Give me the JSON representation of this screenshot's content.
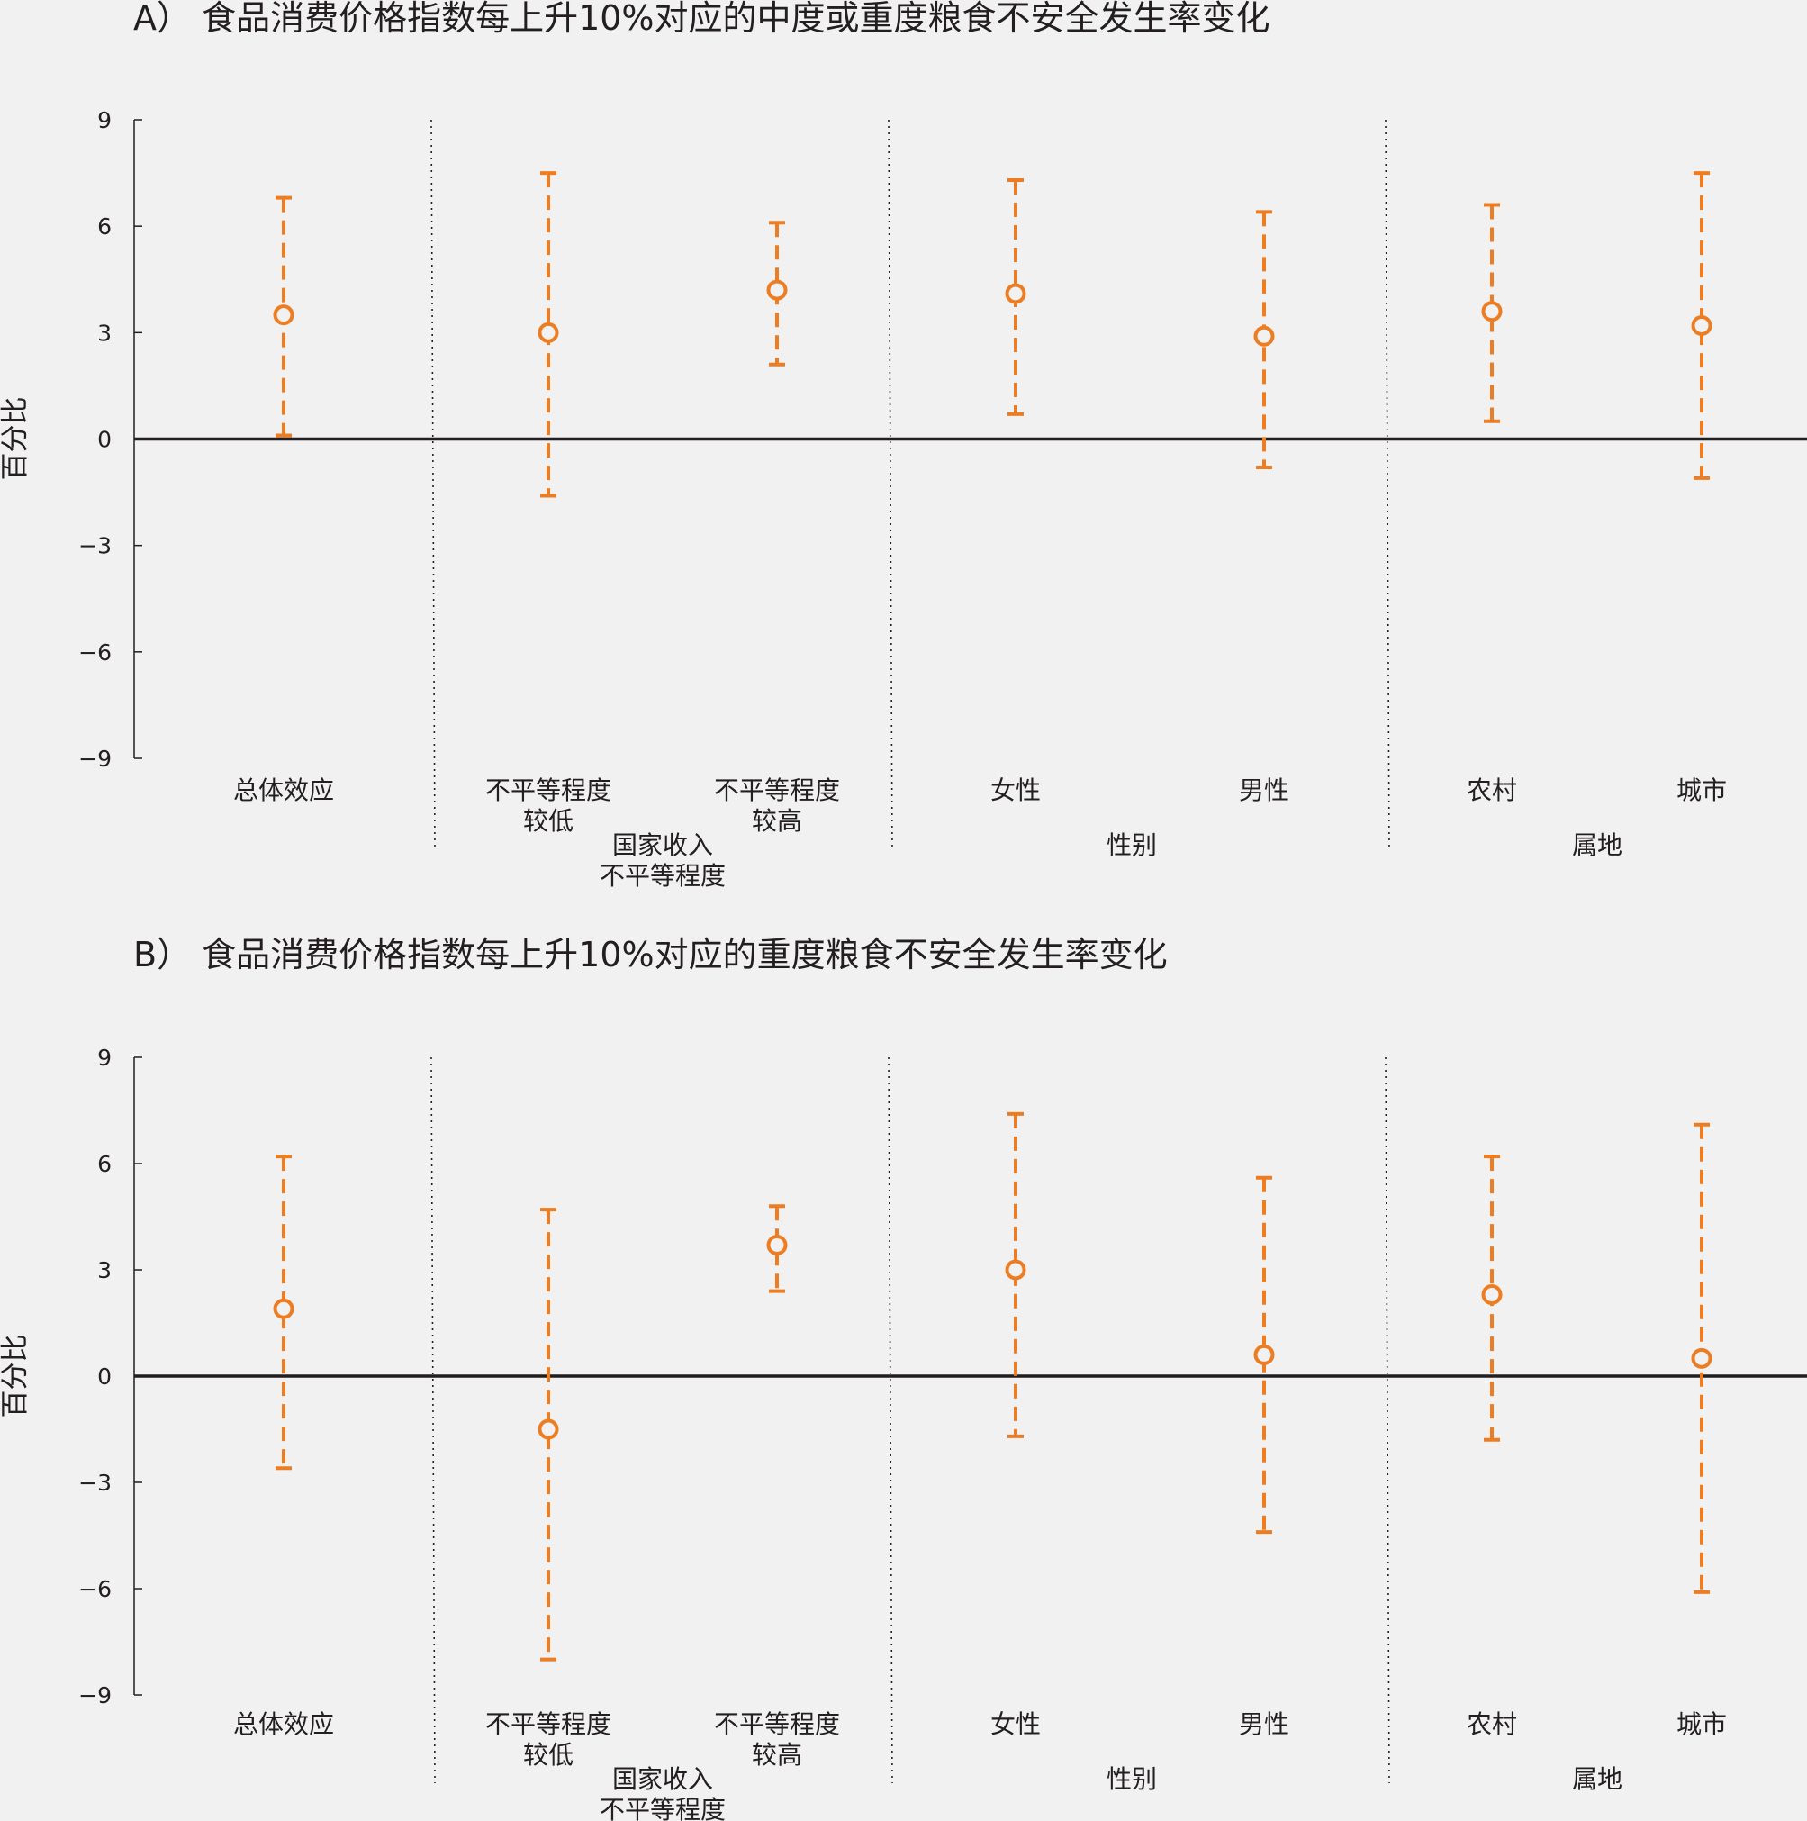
{
  "chart_data": [
    {
      "type": "scatter",
      "title": "A） 食品消费价格指数每上升10%对应的中度或重度粮食不安全发生率变化",
      "ylabel": "百分比",
      "ylim": [
        -9,
        9
      ],
      "yticks": [
        "9",
        "6",
        "3",
        "0",
        "−3",
        "−6",
        "−9"
      ],
      "yticks_values": [
        9,
        6,
        3,
        0,
        -3,
        -6,
        -9
      ],
      "grid": false,
      "point_color": "#ed7d22",
      "categories": [
        {
          "label": [
            "总体效应"
          ],
          "value": 3.5,
          "low": 0.1,
          "high": 6.8
        },
        {
          "label": [
            "不平等程度",
            "较低"
          ],
          "value": 3.0,
          "low": -1.6,
          "high": 7.5
        },
        {
          "label": [
            "不平等程度",
            "较高"
          ],
          "value": 4.2,
          "low": 2.1,
          "high": 6.1
        },
        {
          "label": [
            "女性"
          ],
          "value": 4.1,
          "low": 0.7,
          "high": 7.3
        },
        {
          "label": [
            "男性"
          ],
          "value": 2.9,
          "low": -0.8,
          "high": 6.4
        },
        {
          "label": [
            "农村"
          ],
          "value": 3.6,
          "low": 0.5,
          "high": 6.6
        },
        {
          "label": [
            "城市"
          ],
          "value": 3.2,
          "low": -1.1,
          "high": 7.5
        }
      ],
      "groups": [
        {
          "label": [
            "国家收入",
            "不平等程度"
          ]
        },
        {
          "label": [
            "性别"
          ]
        },
        {
          "label": [
            "属地"
          ]
        }
      ]
    },
    {
      "type": "scatter",
      "title": "B） 食品消费价格指数每上升10%对应的重度粮食不安全发生率变化",
      "ylabel": "百分比",
      "ylim": [
        -9,
        9
      ],
      "yticks": [
        "9",
        "6",
        "3",
        "0",
        "−3",
        "−6",
        "−9"
      ],
      "yticks_values": [
        9,
        6,
        3,
        0,
        -3,
        -6,
        -9
      ],
      "grid": false,
      "point_color": "#ed7d22",
      "categories": [
        {
          "label": [
            "总体效应"
          ],
          "value": 1.9,
          "low": -2.6,
          "high": 6.2
        },
        {
          "label": [
            "不平等程度",
            "较低"
          ],
          "value": -1.5,
          "low": -8.0,
          "high": 4.7
        },
        {
          "label": [
            "不平等程度",
            "较高"
          ],
          "value": 3.7,
          "low": 2.4,
          "high": 4.8
        },
        {
          "label": [
            "女性"
          ],
          "value": 3.0,
          "low": -1.7,
          "high": 7.4
        },
        {
          "label": [
            "男性"
          ],
          "value": 0.6,
          "low": -4.4,
          "high": 5.6
        },
        {
          "label": [
            "农村"
          ],
          "value": 2.3,
          "low": -1.8,
          "high": 6.2
        },
        {
          "label": [
            "城市"
          ],
          "value": 0.5,
          "low": -6.1,
          "high": 7.1
        }
      ],
      "groups": [
        {
          "label": [
            "国家收入",
            "不平等程度"
          ]
        },
        {
          "label": [
            "性别"
          ]
        },
        {
          "label": [
            "属地"
          ]
        }
      ]
    }
  ]
}
